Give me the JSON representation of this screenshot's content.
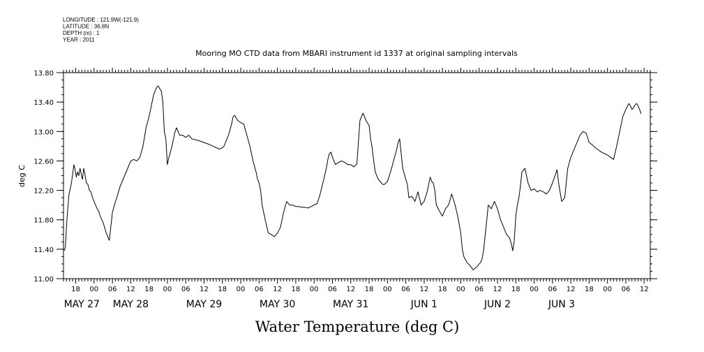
{
  "chart_data": {
    "type": "line",
    "metadata_lines": [
      "LONGITUDE : 121.9W(-121.9)",
      "LATITUDE : 36.8N",
      "DEPTH (m) : 1",
      "YEAR : 2011"
    ],
    "title": "Mooring MO CTD data from MBARI instrument id 1337 at original sampling intervals",
    "xlabel": "Water Temperature (deg C)",
    "ylabel": "deg C",
    "ylim": [
      11.0,
      13.8
    ],
    "y_ticks": [
      "11.00",
      "11.40",
      "11.80",
      "12.20",
      "12.60",
      "13.00",
      "13.40",
      "13.80"
    ],
    "x_unit": "hours since May 27 00:00, 2011",
    "xlim": [
      14,
      206
    ],
    "x_tick_labels": [
      {
        "x": 18,
        "label": "18"
      },
      {
        "x": 24,
        "label": "00"
      },
      {
        "x": 30,
        "label": "06"
      },
      {
        "x": 36,
        "label": "12"
      },
      {
        "x": 42,
        "label": "18"
      },
      {
        "x": 48,
        "label": "00"
      },
      {
        "x": 54,
        "label": "06"
      },
      {
        "x": 60,
        "label": "12"
      },
      {
        "x": 66,
        "label": "18"
      },
      {
        "x": 72,
        "label": "00"
      },
      {
        "x": 78,
        "label": "06"
      },
      {
        "x": 84,
        "label": "12"
      },
      {
        "x": 90,
        "label": "18"
      },
      {
        "x": 96,
        "label": "00"
      },
      {
        "x": 102,
        "label": "06"
      },
      {
        "x": 108,
        "label": "12"
      },
      {
        "x": 114,
        "label": "18"
      },
      {
        "x": 120,
        "label": "00"
      },
      {
        "x": 126,
        "label": "06"
      },
      {
        "x": 132,
        "label": "12"
      },
      {
        "x": 138,
        "label": "18"
      },
      {
        "x": 144,
        "label": "00"
      },
      {
        "x": 150,
        "label": "06"
      },
      {
        "x": 156,
        "label": "12"
      },
      {
        "x": 162,
        "label": "18"
      },
      {
        "x": 168,
        "label": "00"
      },
      {
        "x": 174,
        "label": "06"
      },
      {
        "x": 180,
        "label": "12"
      },
      {
        "x": 186,
        "label": "18"
      },
      {
        "x": 192,
        "label": "00"
      },
      {
        "x": 198,
        "label": "06"
      },
      {
        "x": 204,
        "label": "12"
      }
    ],
    "day_labels": [
      {
        "x": 20,
        "label": "MAY 27"
      },
      {
        "x": 36,
        "label": "MAY 28"
      },
      {
        "x": 60,
        "label": "MAY 29"
      },
      {
        "x": 84,
        "label": "MAY 30"
      },
      {
        "x": 108,
        "label": "MAY 31"
      },
      {
        "x": 132,
        "label": "JUN  1"
      },
      {
        "x": 156,
        "label": "JUN  2"
      },
      {
        "x": 177,
        "label": "JUN  3"
      }
    ],
    "grid": false,
    "series": [
      {
        "color": "#000000",
        "x": [
          14.2,
          14.6,
          15.0,
          15.4,
          15.8,
          16.2,
          16.6,
          17.0,
          17.4,
          17.8,
          18.2,
          18.6,
          19.0,
          19.4,
          19.8,
          20.2,
          20.6,
          21.0,
          21.5,
          22.0,
          22.5,
          23.0,
          23.5,
          24.0,
          24.5,
          25.0,
          25.5,
          26.0,
          27.0,
          28.0,
          29.0,
          30.0,
          31.0,
          31.6,
          32.0,
          32.5,
          33.0,
          34.0,
          35.0,
          36.0,
          37.0,
          38.0,
          39.0,
          40.0,
          41.0,
          42.0,
          43.0,
          43.5,
          44.0,
          44.5,
          45.0,
          45.5,
          46.0,
          46.5,
          47.0,
          47.5,
          48.0,
          48.5,
          49.0,
          49.5,
          50.0,
          50.5,
          51.0,
          52.0,
          53.0,
          54.0,
          55.0,
          56.0,
          58.0,
          60.0,
          62.0,
          63.0,
          64.0,
          65.0,
          66.0,
          66.5,
          67.0,
          67.5,
          68.0,
          69.0,
          69.5,
          70.0,
          71.0,
          72.0,
          73.0,
          74.0,
          75.0,
          76.0,
          77.0,
          77.5,
          78.0,
          78.5,
          79.0,
          80.0,
          81.0,
          82.0,
          83.0,
          84.0,
          85.0,
          86.0,
          87.0,
          88.0,
          89.0,
          90.0,
          91.0,
          92.0,
          93.0,
          94.0,
          95.0,
          96.0,
          97.0,
          98.0,
          99.0,
          100.0,
          100.5,
          101.0,
          101.5,
          102.0,
          103.0,
          104.0,
          105.0,
          106.0,
          107.0,
          108.0,
          109.0,
          110.0,
          111.0,
          112.0,
          113.0,
          114.0,
          114.5,
          115.0,
          115.5,
          116.0,
          117.0,
          118.0,
          118.5,
          119.0,
          120.0,
          121.0,
          122.0,
          123.0,
          123.5,
          124.0,
          124.5,
          125.0,
          126.0,
          126.5,
          127.0,
          128.0,
          129.0,
          130.0,
          131.0,
          132.0,
          133.0,
          134.0,
          134.5,
          135.0,
          135.5,
          136.0,
          137.0,
          138.0,
          139.0,
          140.0,
          141.0,
          142.0,
          143.0,
          144.0,
          144.5,
          145.0,
          146.0,
          147.0,
          148.0,
          149.0,
          149.5,
          150.0,
          150.5,
          151.0,
          151.5,
          152.0,
          152.5,
          153.0,
          154.0,
          155.0,
          156.0,
          157.0,
          158.0,
          159.0,
          160.0,
          160.5,
          161.0,
          161.5,
          162.0,
          162.5,
          163.0,
          163.5,
          164.0,
          165.0,
          166.0,
          167.0,
          168.0,
          169.0,
          170.0,
          171.0,
          172.0,
          173.0,
          174.0,
          175.0,
          175.5,
          176.0,
          177.0,
          178.0,
          179.0,
          180.0,
          181.0,
          182.0,
          183.0,
          184.0,
          185.0,
          186.0,
          187.0,
          188.0,
          189.0,
          190.0,
          191.0,
          192.0,
          193.0,
          194.0,
          195.0,
          196.0,
          197.0,
          198.0,
          199.0,
          199.5,
          200.0,
          200.5,
          201.0,
          201.5,
          202.0,
          202.5,
          203.0
        ],
        "y": [
          11.38,
          11.42,
          11.72,
          11.95,
          12.15,
          12.22,
          12.3,
          12.42,
          12.55,
          12.48,
          12.38,
          12.45,
          12.4,
          12.5,
          12.42,
          12.35,
          12.5,
          12.42,
          12.3,
          12.28,
          12.2,
          12.18,
          12.1,
          12.05,
          12.0,
          11.95,
          11.92,
          11.85,
          11.76,
          11.62,
          11.52,
          11.9,
          12.05,
          12.12,
          12.18,
          12.25,
          12.3,
          12.4,
          12.5,
          12.6,
          12.62,
          12.6,
          12.65,
          12.8,
          13.05,
          13.2,
          13.4,
          13.5,
          13.55,
          13.6,
          13.62,
          13.58,
          13.55,
          13.4,
          13.0,
          12.9,
          12.55,
          12.65,
          12.72,
          12.8,
          12.9,
          13.0,
          13.05,
          12.95,
          12.95,
          12.92,
          12.95,
          12.9,
          12.88,
          12.85,
          12.82,
          12.8,
          12.78,
          12.76,
          12.78,
          12.8,
          12.85,
          12.9,
          12.95,
          13.1,
          13.2,
          13.22,
          13.15,
          13.12,
          13.1,
          12.95,
          12.8,
          12.6,
          12.45,
          12.35,
          12.3,
          12.2,
          12.0,
          11.8,
          11.62,
          11.6,
          11.57,
          11.62,
          11.7,
          11.9,
          12.05,
          12.0,
          12.0,
          11.98,
          11.98,
          11.97,
          11.97,
          11.96,
          11.98,
          12.0,
          12.02,
          12.15,
          12.32,
          12.5,
          12.62,
          12.7,
          12.72,
          12.65,
          12.55,
          12.58,
          12.6,
          12.58,
          12.55,
          12.55,
          12.52,
          12.56,
          13.15,
          13.25,
          13.15,
          13.08,
          12.9,
          12.78,
          12.6,
          12.45,
          12.35,
          12.3,
          12.28,
          12.28,
          12.32,
          12.45,
          12.6,
          12.75,
          12.85,
          12.9,
          12.7,
          12.5,
          12.35,
          12.28,
          12.1,
          12.12,
          12.05,
          12.18,
          12.0,
          12.05,
          12.18,
          12.38,
          12.32,
          12.3,
          12.2,
          12.0,
          11.92,
          11.85,
          11.95,
          12.0,
          12.15,
          12.02,
          11.85,
          11.62,
          11.4,
          11.3,
          11.22,
          11.18,
          11.12,
          11.15,
          11.17,
          11.2,
          11.22,
          11.28,
          11.4,
          11.6,
          11.8,
          12.0,
          11.95,
          12.05,
          11.95,
          11.8,
          11.7,
          11.6,
          11.55,
          11.48,
          11.38,
          11.52,
          11.85,
          12.0,
          12.1,
          12.25,
          12.45,
          12.5,
          12.3,
          12.2,
          12.22,
          12.18,
          12.2,
          12.18,
          12.15,
          12.2,
          12.3,
          12.42,
          12.48,
          12.3,
          12.05,
          12.1,
          12.5,
          12.65,
          12.75,
          12.85,
          12.95,
          13.0,
          12.98,
          12.85,
          12.82,
          12.78,
          12.75,
          12.72,
          12.7,
          12.68,
          12.65,
          12.62,
          12.8,
          13.0,
          13.2,
          13.3,
          13.38,
          13.35,
          13.3,
          13.32,
          13.36,
          13.38,
          13.35,
          13.3,
          13.24
        ]
      }
    ]
  }
}
